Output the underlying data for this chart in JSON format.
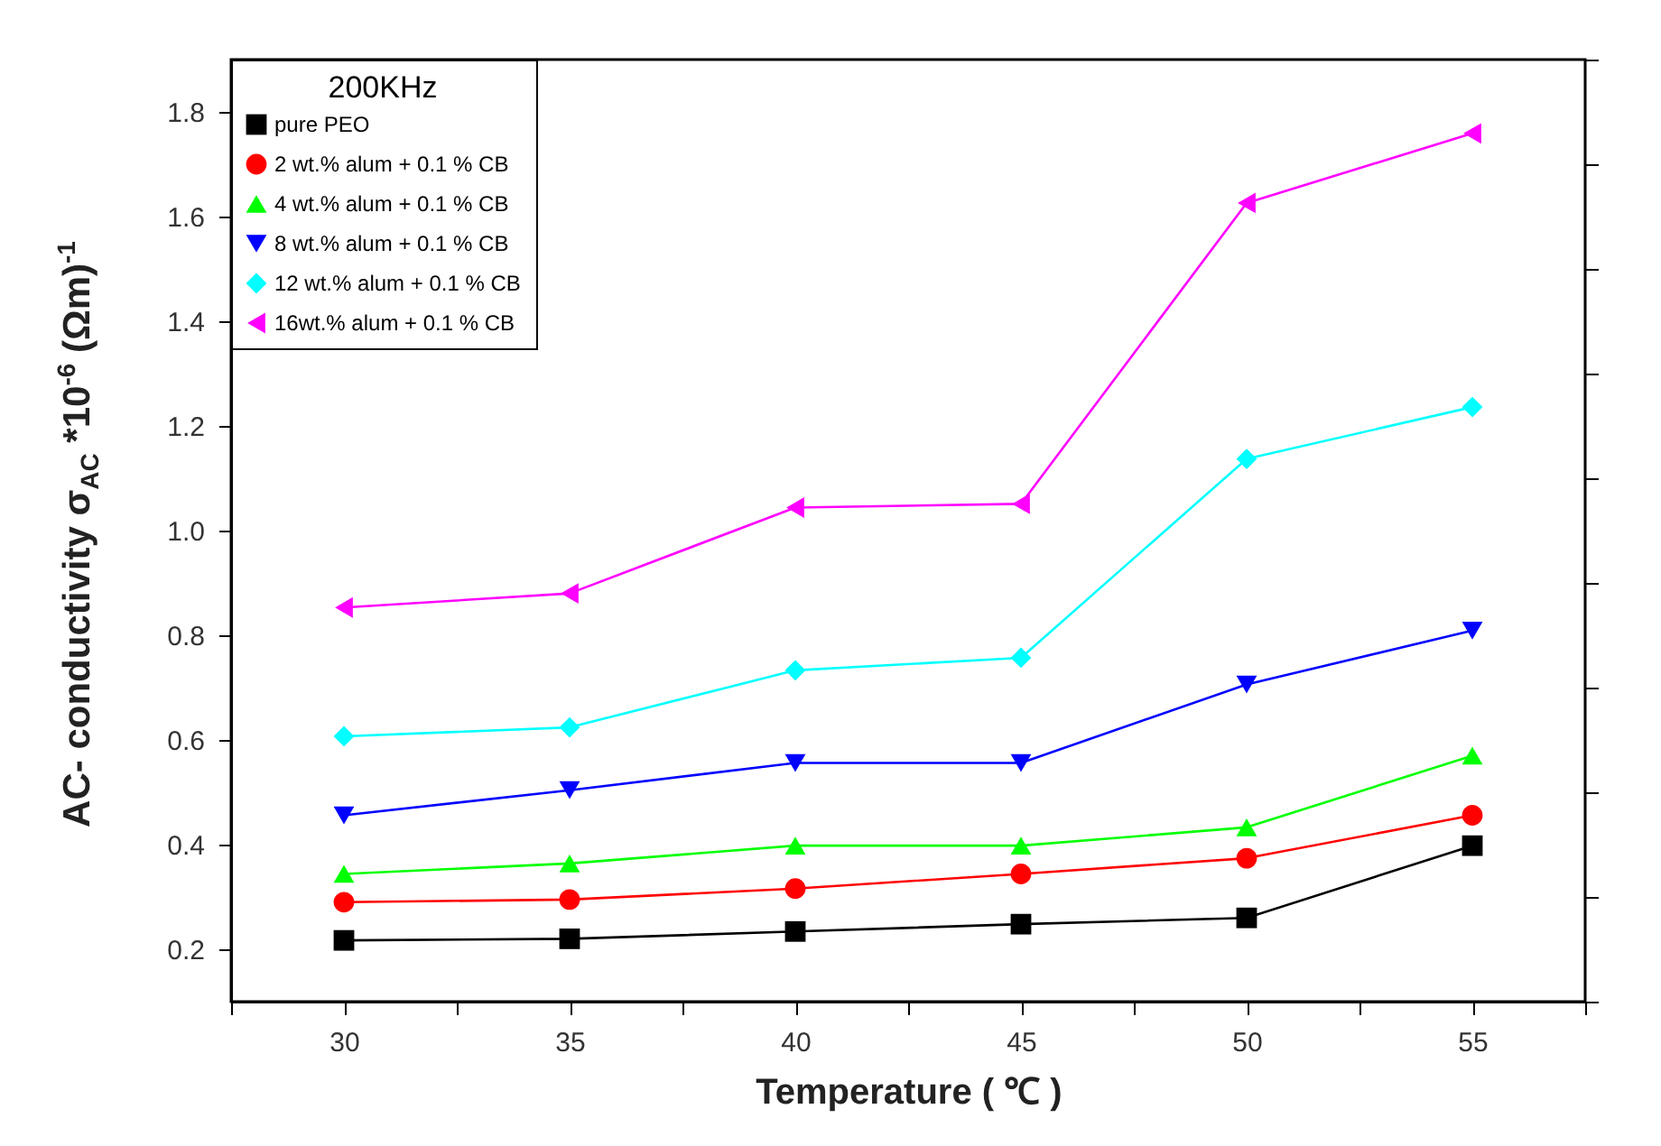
{
  "chart_data": {
    "type": "line",
    "xlabel": "Temperature ( ℃ )",
    "ylabel": "AC- conductivity σ$_{AC}$ *10$^{-6}$ (Ωm)$^{-1}$",
    "legend_title": "200KHz",
    "x": [
      30,
      35,
      40,
      45,
      50,
      55
    ],
    "series": [
      {
        "name": "pure PEO",
        "color": "#000000",
        "marker": "square",
        "values": [
          0.217,
          0.22,
          0.234,
          0.248,
          0.26,
          0.398
        ]
      },
      {
        "name": "2 wt.% alum  + 0.1 % CB",
        "color": "#ff0000",
        "marker": "circle",
        "values": [
          0.29,
          0.295,
          0.316,
          0.344,
          0.374,
          0.456
        ]
      },
      {
        "name": "4 wt.% alum  + 0.1 % CB",
        "color": "#00ff00",
        "marker": "triangle",
        "values": [
          0.344,
          0.364,
          0.398,
          0.398,
          0.433,
          0.57
        ]
      },
      {
        "name": "8 wt.% alum  + 0.1 % CB",
        "color": "#0000ff",
        "marker": "triangle-down",
        "values": [
          0.456,
          0.504,
          0.556,
          0.556,
          0.706,
          0.809
        ]
      },
      {
        "name": "12 wt.% alum + 0.1 % CB",
        "color": "#00ffff",
        "marker": "diamond",
        "values": [
          0.607,
          0.624,
          0.733,
          0.757,
          1.137,
          1.236
        ]
      },
      {
        "name": "16wt.% alum + 0.1 % CB",
        "color": "#ff00ff",
        "marker": "triangle-left",
        "values": [
          0.853,
          0.88,
          1.044,
          1.051,
          1.626,
          1.759
        ]
      }
    ],
    "xlim": [
      27.5,
      57.5
    ],
    "xticks": [
      {
        "value": 27.5,
        "label": null
      },
      30,
      {
        "value": 32.5,
        "label": null
      },
      35,
      {
        "value": 37.5,
        "label": null
      },
      40,
      {
        "value": 42.5,
        "label": null
      },
      45,
      {
        "value": 47.5,
        "label": null
      },
      50,
      {
        "value": 52.5,
        "label": null
      },
      55,
      {
        "value": 57.5,
        "label": null
      }
    ],
    "ylim": [
      0.1,
      1.9
    ],
    "yticks": [
      {
        "value": 0.1,
        "label": null
      },
      0.2,
      {
        "value": 0.3,
        "label": null
      },
      0.4,
      {
        "value": 0.5,
        "label": null
      },
      0.6,
      {
        "value": 0.7,
        "label": null
      },
      0.8,
      {
        "value": 0.9,
        "label": null
      },
      {
        "value": 1.0,
        "label": "1.0"
      },
      {
        "value": 1.1,
        "label": null
      },
      1.2,
      {
        "value": 1.3,
        "label": null
      },
      1.4,
      {
        "value": 1.5,
        "label": null
      },
      1.6,
      {
        "value": 1.7,
        "label": null
      },
      1.8,
      {
        "value": 1.9,
        "label": null
      }
    ],
    "grid": false,
    "legend": "top left",
    "line_style": "solid"
  }
}
